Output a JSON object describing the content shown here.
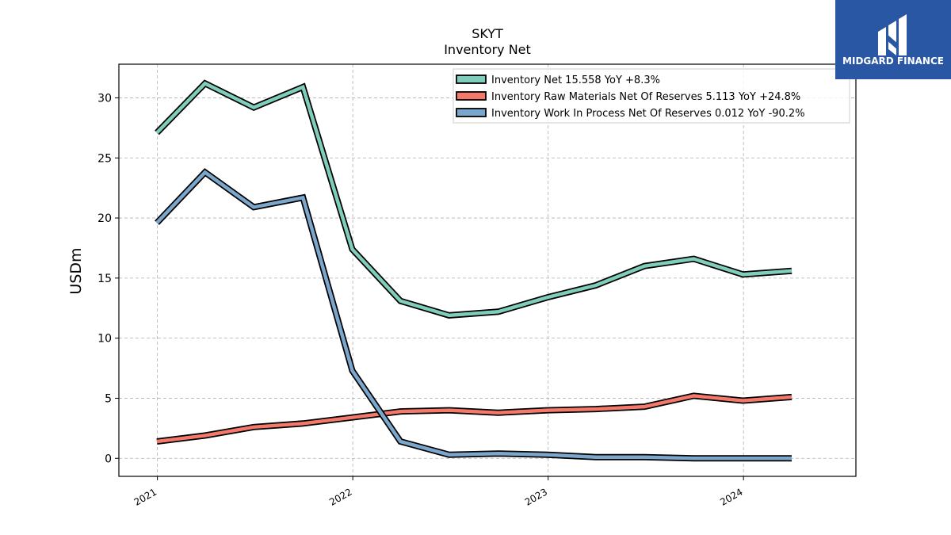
{
  "logo": {
    "text": "MIDGARD FINANCE",
    "background": "#2957a4"
  },
  "chart_data": {
    "type": "line",
    "title": "SKYT",
    "subtitle": "Inventory Net",
    "xlabel": "",
    "ylabel": "USDm",
    "x_ticks": [
      "2021",
      "2022",
      "2023",
      "2024"
    ],
    "y_ticks": [
      "0",
      "5",
      "10",
      "15",
      "20",
      "25",
      "30"
    ],
    "xlim": [
      "2020-10-21",
      "2024-07-29"
    ],
    "ylim": [
      -1.5,
      32.8
    ],
    "grid": true,
    "legend_position": "top-right",
    "x": [
      "2020-12-31",
      "2021-03-31",
      "2021-06-30",
      "2021-09-30",
      "2021-12-31",
      "2022-03-31",
      "2022-06-30",
      "2022-09-30",
      "2022-12-31",
      "2023-03-31",
      "2023-06-30",
      "2023-09-30",
      "2023-12-31",
      "2024-03-31"
    ],
    "series": [
      {
        "name": "Inventory Net",
        "legend_label": "Inventory Net  15.558 YoY +8.3%",
        "color": "#7fcdbb",
        "values": [
          27.1,
          31.2,
          29.2,
          30.9,
          17.4,
          13.1,
          11.9,
          12.2,
          13.4,
          14.4,
          16.0,
          16.6,
          15.3,
          15.6
        ]
      },
      {
        "name": "Inventory Raw Materials Net Of Reserves",
        "legend_label": "Inventory Raw Materials Net Of Reserves  5.113 YoY +24.8%",
        "color": "#f4796b",
        "values": [
          1.4,
          1.9,
          2.6,
          2.9,
          3.4,
          3.9,
          4.0,
          3.8,
          4.0,
          4.1,
          4.3,
          5.2,
          4.8,
          5.1
        ]
      },
      {
        "name": "Inventory Work In Process Net Of Reserves",
        "legend_label": "Inventory Work In Process Net Of Reserves  0.012 YoY -90.2%",
        "color": "#7ba7cd",
        "values": [
          19.6,
          23.8,
          20.9,
          21.7,
          7.3,
          1.4,
          0.3,
          0.4,
          0.3,
          0.1,
          0.1,
          0.0,
          0.0,
          0.0
        ]
      }
    ]
  }
}
